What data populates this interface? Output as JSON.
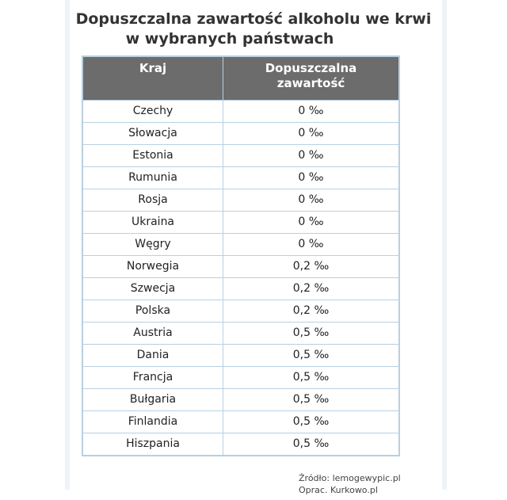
{
  "title_line1": "Dopuszczalna zawartość alkoholu we krwi",
  "title_line2": "w wybranych państwach",
  "headers": [
    "Kraj",
    "Dopuszczalna zawartość"
  ],
  "rows": [
    [
      "Czechy",
      "0 ‰"
    ],
    [
      "Słowacja",
      "0 ‰"
    ],
    [
      "Estonia",
      "0 ‰"
    ],
    [
      "Rumunia",
      "0 ‰"
    ],
    [
      "Rosja",
      "0 ‰"
    ],
    [
      "Ukraina",
      "0 ‰"
    ],
    [
      "Węgry",
      "0 ‰"
    ],
    [
      "Norwegia",
      "0,2 ‰"
    ],
    [
      "Szwecja",
      "0,2 ‰"
    ],
    [
      "Polska",
      "0,2 ‰"
    ],
    [
      "Austria",
      "0,5 ‰"
    ],
    [
      "Dania",
      "0,5 ‰"
    ],
    [
      "Francja",
      "0,5 ‰"
    ],
    [
      "Bułgaria",
      "0,5 ‰"
    ],
    [
      "Finlandia",
      "0,5 ‰"
    ],
    [
      "Hiszpania",
      "0,5 ‰"
    ]
  ],
  "source": "Źródło: lemogewypic.pl",
  "credit": "Oprac. Kurkowo.pl"
}
